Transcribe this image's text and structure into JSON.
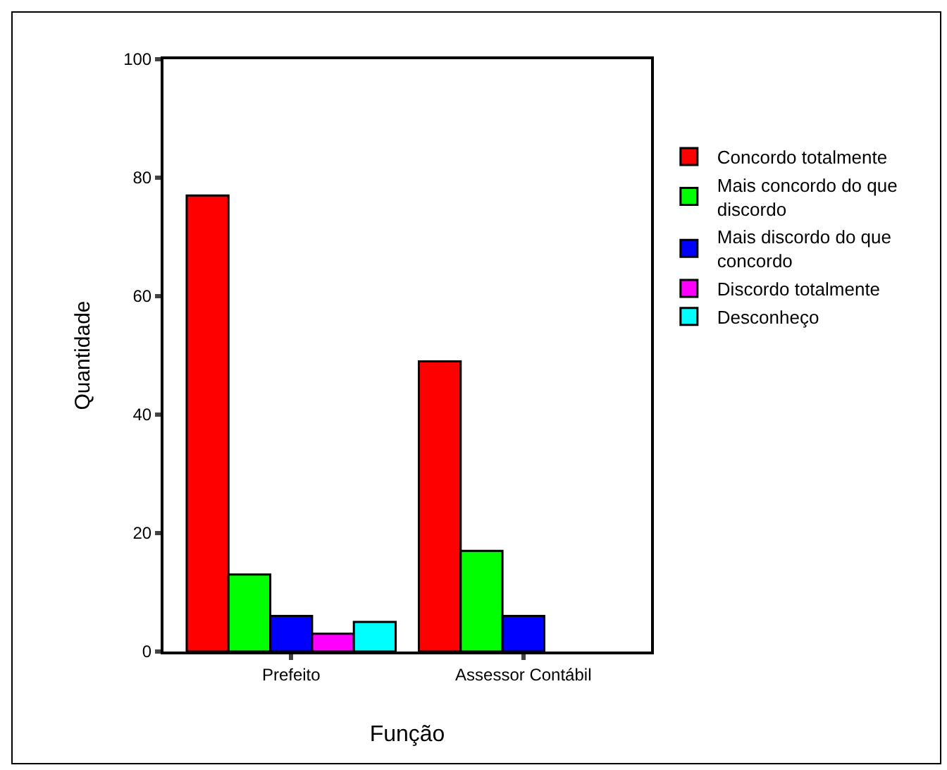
{
  "chart_data": {
    "type": "bar",
    "xlabel": "Função",
    "ylabel": "Quantidade",
    "categories": [
      "Prefeito",
      "Assessor Contábil"
    ],
    "series": [
      {
        "name": "Concordo totalmente",
        "color": "#ff0000",
        "values": [
          77,
          49
        ]
      },
      {
        "name": "Mais concordo do que discordo",
        "color": "#00ff00",
        "values": [
          13,
          17
        ]
      },
      {
        "name": "Mais discordo do que concordo",
        "color": "#0000ff",
        "values": [
          6,
          6
        ]
      },
      {
        "name": "Discordo totalmente",
        "color": "#ff00ff",
        "values": [
          3,
          null
        ]
      },
      {
        "name": "Desconheço",
        "color": "#00ffff",
        "values": [
          5,
          null
        ]
      }
    ],
    "ylim": [
      0,
      100
    ],
    "yticks": [
      0,
      20,
      40,
      60,
      80,
      100
    ],
    "grid": false,
    "legend": "right"
  }
}
